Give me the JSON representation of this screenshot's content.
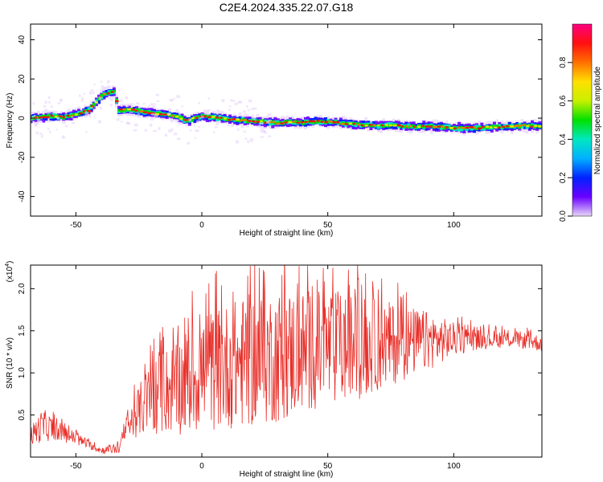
{
  "title": "C2E4.2024.335.22.07.G18",
  "chart_data": [
    {
      "type": "heatmap",
      "xlabel": "Height of straight line (km)",
      "ylabel": "Frequency (Hz)",
      "xlim": [
        -68,
        135
      ],
      "ylim": [
        -50,
        48
      ],
      "xticks": [
        -50,
        0,
        50,
        100
      ],
      "yticks": [
        -40,
        -20,
        0,
        20,
        40
      ],
      "ridge": [
        [
          -66,
          0
        ],
        [
          -60,
          1
        ],
        [
          -55,
          0.5
        ],
        [
          -50,
          2
        ],
        [
          -45,
          4
        ],
        [
          -42,
          8
        ],
        [
          -40,
          11
        ],
        [
          -38,
          12.5
        ],
        [
          -35,
          13.5
        ],
        [
          -33,
          4
        ],
        [
          -30,
          4.5
        ],
        [
          -25,
          3.5
        ],
        [
          -20,
          2.5
        ],
        [
          -15,
          2
        ],
        [
          -10,
          1
        ],
        [
          -6,
          -1.5
        ],
        [
          -3,
          0
        ],
        [
          0,
          1
        ],
        [
          5,
          0.5
        ],
        [
          10,
          -0.5
        ],
        [
          15,
          -1
        ],
        [
          20,
          -1.5
        ],
        [
          25,
          -2
        ],
        [
          30,
          -2.5
        ],
        [
          35,
          -2
        ],
        [
          40,
          -2.5
        ],
        [
          45,
          -1.5
        ],
        [
          50,
          -2
        ],
        [
          55,
          -2.5
        ],
        [
          60,
          -3
        ],
        [
          65,
          -3.5
        ],
        [
          70,
          -4
        ],
        [
          75,
          -3.5
        ],
        [
          80,
          -4
        ],
        [
          85,
          -4.5
        ],
        [
          90,
          -4
        ],
        [
          95,
          -4.5
        ],
        [
          100,
          -5
        ],
        [
          105,
          -5
        ],
        [
          110,
          -5
        ],
        [
          115,
          -4.5
        ],
        [
          120,
          -4.5
        ],
        [
          125,
          -4
        ],
        [
          130,
          -4
        ],
        [
          135,
          -4
        ]
      ],
      "colorbar": {
        "label": "Normalized spectral amplitude",
        "range": [
          0.0,
          1.0
        ],
        "ticks": [
          0.0,
          0.2,
          0.4,
          0.6,
          0.8
        ],
        "tick_labels": [
          "0.0",
          "0.2",
          "0.4",
          "0.6",
          "0.8"
        ],
        "colors": [
          "#e8d6f8",
          "#6a00ff",
          "#0022ff",
          "#00b0ff",
          "#00e8c0",
          "#00e000",
          "#c8f000",
          "#ffe000",
          "#ff7000",
          "#ff1010",
          "#ff0080"
        ]
      }
    },
    {
      "type": "line",
      "xlabel": "Height of straight line (km)",
      "ylabel": "SNR (10 * v/v)",
      "y_multiplier": "(x10",
      "y_multiplier_exp": "4",
      "y_multiplier_close": ")",
      "xlim": [
        -68,
        135
      ],
      "ylim": [
        0,
        2.28
      ],
      "xticks": [
        -50,
        0,
        50,
        100
      ],
      "yticks": [
        0.5,
        1.0,
        1.5,
        2.0
      ],
      "ytick_labels": [
        "0.5",
        "1.0",
        "1.5",
        "2.0"
      ],
      "color": "#e8302a",
      "envelope": {
        "x": [
          -68,
          -63,
          -58,
          -50,
          -45,
          -40,
          -33,
          -30,
          -25,
          -20,
          -12,
          -5,
          0,
          10,
          20,
          30,
          40,
          50,
          60,
          70,
          80,
          90,
          100,
          110,
          120,
          125,
          135
        ],
        "mean": [
          0.25,
          0.38,
          0.32,
          0.22,
          0.15,
          0.08,
          0.1,
          0.32,
          0.55,
          0.72,
          0.82,
          0.9,
          1.0,
          1.08,
          1.15,
          1.2,
          1.25,
          1.28,
          1.3,
          1.33,
          1.36,
          1.38,
          1.4,
          1.4,
          1.4,
          1.4,
          1.35
        ],
        "amp": [
          0.12,
          0.2,
          0.12,
          0.08,
          0.05,
          0.04,
          0.06,
          0.15,
          0.3,
          0.45,
          0.55,
          0.65,
          0.7,
          0.75,
          0.8,
          0.8,
          0.75,
          0.7,
          0.65,
          0.55,
          0.45,
          0.35,
          0.2,
          0.12,
          0.1,
          0.1,
          0.1
        ]
      }
    }
  ]
}
